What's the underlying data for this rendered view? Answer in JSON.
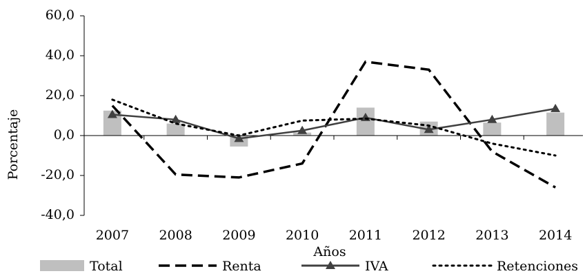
{
  "chart_data": {
    "type": "combo",
    "xlabel": "Años",
    "ylabel": "Porcentaje",
    "categories": [
      "2007",
      "2008",
      "2009",
      "2010",
      "2011",
      "2012",
      "2013",
      "2014"
    ],
    "series": [
      {
        "name": "Total",
        "type": "bar",
        "color": "#bfbfbf",
        "values": [
          12.5,
          6,
          -5.5,
          1.5,
          14,
          7,
          6.5,
          11.5
        ]
      },
      {
        "name": "Renta",
        "type": "line",
        "dash": "dashed",
        "color": "#000000",
        "values": [
          15,
          -19.5,
          -21,
          -14,
          37,
          33,
          -8,
          -26
        ]
      },
      {
        "name": "IVA",
        "type": "line",
        "dash": "solid",
        "marker": "triangle",
        "color": "#404040",
        "values": [
          10.5,
          8,
          -1.5,
          2.5,
          9,
          3,
          8,
          13.5
        ]
      },
      {
        "name": "Retenciones",
        "type": "line",
        "dash": "dotted",
        "color": "#000000",
        "values": [
          18,
          6,
          0,
          7.5,
          8.5,
          5,
          -4,
          -10
        ]
      }
    ],
    "ylim": [
      -40,
      60
    ],
    "yticks": [
      {
        "value": -40,
        "label": "-40,0"
      },
      {
        "value": -20,
        "label": "-20,0"
      },
      {
        "value": 0,
        "label": "0,0"
      },
      {
        "value": 20,
        "label": "20,0"
      },
      {
        "value": 40,
        "label": "40,0"
      },
      {
        "value": 60,
        "label": "60,0"
      }
    ],
    "legend": "bottom"
  }
}
